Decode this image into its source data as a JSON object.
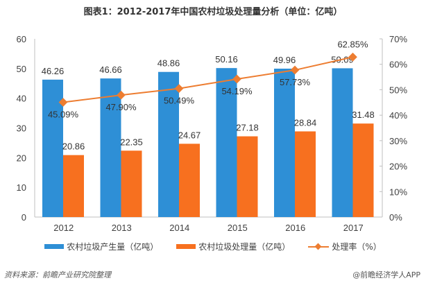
{
  "chart_data": {
    "type": "bar",
    "title": "图表1：2012-2017年中国农村垃圾处理量分析（单位：亿吨）",
    "categories": [
      "2012",
      "2013",
      "2014",
      "2015",
      "2016",
      "2017"
    ],
    "series": [
      {
        "name": "农村垃圾产生量（亿吨）",
        "type": "bar",
        "axis": "left",
        "color": "#2e8fd6",
        "values": [
          46.26,
          46.66,
          48.86,
          50.16,
          49.96,
          50.09
        ],
        "labels": [
          "46.26",
          "46.66",
          "48.86",
          "50.16",
          "49.96",
          "50.09"
        ]
      },
      {
        "name": "农村垃圾处理量（亿吨）",
        "type": "bar",
        "axis": "left",
        "color": "#f7701f",
        "values": [
          20.86,
          22.35,
          24.67,
          27.18,
          28.84,
          31.48
        ],
        "labels": [
          "20.86",
          "22.35",
          "24.67",
          "27.18",
          "28.84",
          "31.48"
        ]
      },
      {
        "name": "处理率（%）",
        "type": "line",
        "axis": "right",
        "color": "#ed7d31",
        "values": [
          45.09,
          47.9,
          50.49,
          54.19,
          57.73,
          62.85
        ],
        "labels": [
          "45.09%",
          "47.90%",
          "50.49%",
          "54.19%",
          "57.73%",
          "62.85%"
        ]
      }
    ],
    "y_left": {
      "min": 0,
      "max": 60,
      "ticks": [
        "0",
        "10",
        "20",
        "30",
        "40",
        "50",
        "60"
      ]
    },
    "y_right": {
      "min": 0,
      "max": 70,
      "ticks": [
        "0%",
        "10%",
        "20%",
        "30%",
        "40%",
        "50%",
        "60%",
        "70%"
      ]
    },
    "grid": false,
    "legend": "bottom"
  },
  "footer": {
    "source": "资料来源：前瞻产业研究院整理",
    "credit": "@前瞻经济学人APP"
  }
}
